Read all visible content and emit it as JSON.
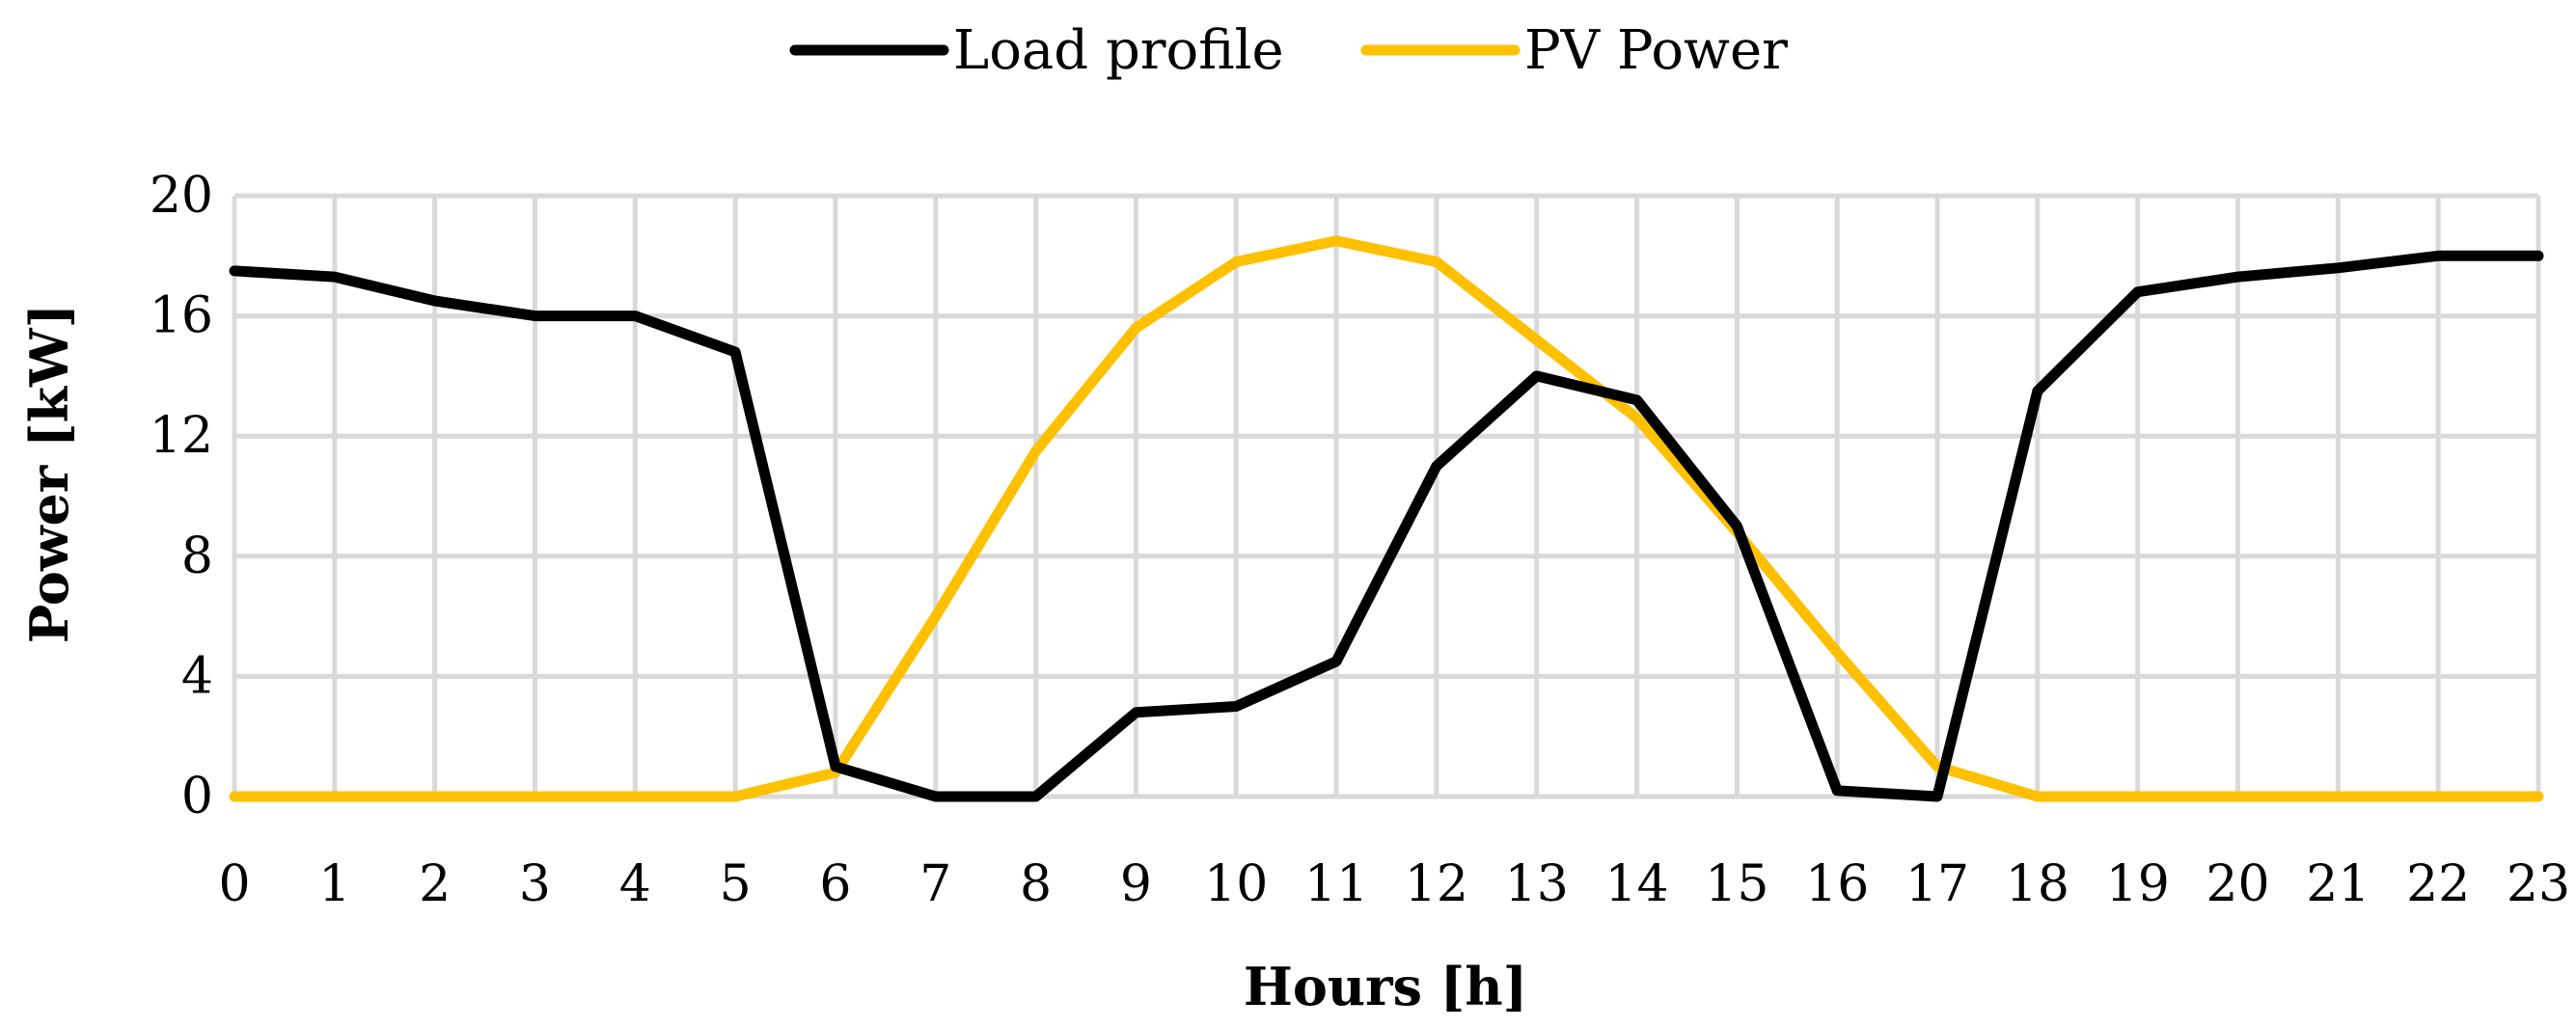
{
  "chart_data": {
    "type": "line",
    "title": "",
    "xlabel": "Hours [h]",
    "ylabel": "Power [kW]",
    "x": [
      0,
      1,
      2,
      3,
      4,
      5,
      6,
      7,
      8,
      9,
      10,
      11,
      12,
      13,
      14,
      15,
      16,
      17,
      18,
      19,
      20,
      21,
      22,
      23
    ],
    "x_tick_labels": [
      "0",
      "1",
      "2",
      "3",
      "4",
      "5",
      "6",
      "7",
      "8",
      "9",
      "10",
      "11",
      "12",
      "13",
      "14",
      "15",
      "16",
      "17",
      "18",
      "19",
      "20",
      "21",
      "22",
      "23"
    ],
    "ylim": [
      0,
      20
    ],
    "y_ticks": [
      0,
      4,
      8,
      12,
      16,
      20
    ],
    "y_tick_labels": [
      "0",
      "4",
      "8",
      "12",
      "16",
      "20"
    ],
    "grid": true,
    "legend_position": "top-center",
    "series": [
      {
        "name": "Load profile",
        "color": "#000000",
        "values": [
          17.5,
          17.3,
          16.5,
          16.0,
          16.0,
          14.8,
          1.0,
          0.0,
          0.0,
          2.8,
          3.0,
          4.5,
          11.0,
          14.0,
          13.2,
          9.0,
          0.2,
          0.0,
          13.5,
          16.8,
          17.3,
          17.6,
          18.0,
          18.0
        ]
      },
      {
        "name": "PV Power",
        "color": "#FFC000",
        "values": [
          0,
          0,
          0,
          0,
          0,
          0,
          0.8,
          6.0,
          11.5,
          15.6,
          17.8,
          18.5,
          17.8,
          15.2,
          12.6,
          8.8,
          4.8,
          1.0,
          0,
          0,
          0,
          0,
          0,
          0
        ]
      }
    ],
    "grid_color": "#D9D9D9"
  }
}
